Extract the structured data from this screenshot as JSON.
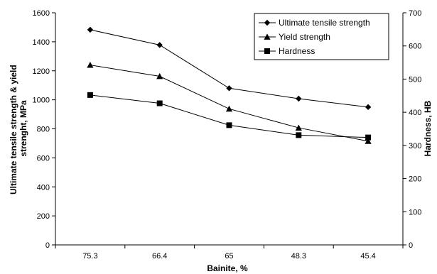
{
  "chart_data": {
    "type": "line",
    "title": "",
    "categories": [
      "75.3",
      "66.4",
      "65",
      "48.3",
      "45.4"
    ],
    "xlabel": "Bainite, %",
    "ylabel_left": [
      "Ultimate tensile strength & yield",
      "strenght, MPa"
    ],
    "ylabel_right": "Hardness, HB",
    "ylim_left": [
      0,
      1600
    ],
    "yticks_left": [
      0,
      200,
      400,
      600,
      800,
      1000,
      1200,
      1400,
      1600
    ],
    "ylim_right": [
      0,
      700
    ],
    "yticks_right": [
      0,
      100,
      200,
      300,
      400,
      500,
      600,
      700
    ],
    "grid": false,
    "legend_position": "top-right",
    "series": [
      {
        "name": "Ultimate tensile strength",
        "axis": "left",
        "marker": "diamond",
        "values": [
          1483,
          1378,
          1080,
          1008,
          950
        ]
      },
      {
        "name": "Yield strength",
        "axis": "left",
        "marker": "triangle",
        "values": [
          1240,
          1162,
          938,
          807,
          715
        ]
      },
      {
        "name": "Hardness",
        "axis": "right",
        "marker": "square",
        "values": [
          452,
          427,
          361,
          331,
          324
        ]
      }
    ]
  }
}
